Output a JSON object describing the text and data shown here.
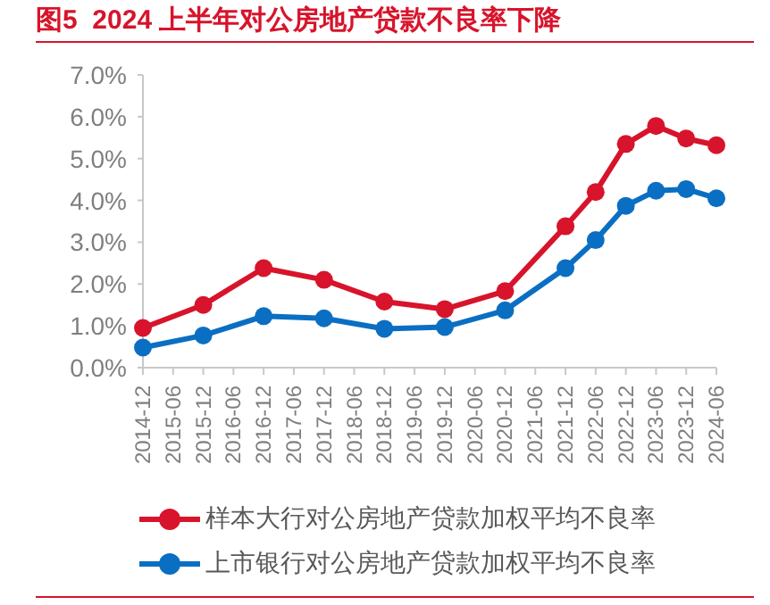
{
  "chart_data": {
    "type": "line",
    "title": "图5  2024 上半年对公房地产贷款不良率下降",
    "categories": [
      "2014-12",
      "2015-06",
      "2015-12",
      "2016-06",
      "2016-12",
      "2017-06",
      "2017-12",
      "2018-06",
      "2018-12",
      "2019-06",
      "2019-12",
      "2020-06",
      "2020-12",
      "2021-06",
      "2021-12",
      "2022-06",
      "2022-12",
      "2023-06",
      "2023-12",
      "2024-06"
    ],
    "series": [
      {
        "name": "样本大行对公房地产贷款加权平均不良率",
        "color": "#d7142b",
        "values": [
          0.95,
          null,
          1.5,
          null,
          2.38,
          null,
          2.1,
          null,
          1.58,
          null,
          1.4,
          null,
          1.83,
          null,
          3.38,
          4.2,
          5.35,
          5.78,
          5.48,
          5.32
        ]
      },
      {
        "name": "上市银行对公房地产贷款加权平均不良率",
        "color": "#0a6fc2",
        "values": [
          0.48,
          null,
          0.77,
          null,
          1.23,
          null,
          1.18,
          null,
          0.93,
          null,
          0.97,
          null,
          1.37,
          null,
          2.38,
          3.05,
          3.87,
          4.23,
          4.27,
          4.05
        ]
      }
    ],
    "ylim": [
      0,
      7
    ],
    "yticks": [
      {
        "value": 0,
        "label": "0.0%"
      },
      {
        "value": 1,
        "label": "1.0%"
      },
      {
        "value": 2,
        "label": "2.0%"
      },
      {
        "value": 3,
        "label": "3.0%"
      },
      {
        "value": 4,
        "label": "4.0%"
      },
      {
        "value": 5,
        "label": "5.0%"
      },
      {
        "value": 6,
        "label": "6.0%"
      },
      {
        "value": 7,
        "label": "7.0%"
      }
    ],
    "grid": false,
    "legend": "bottom",
    "marker": "circle",
    "line_style": "solid"
  }
}
